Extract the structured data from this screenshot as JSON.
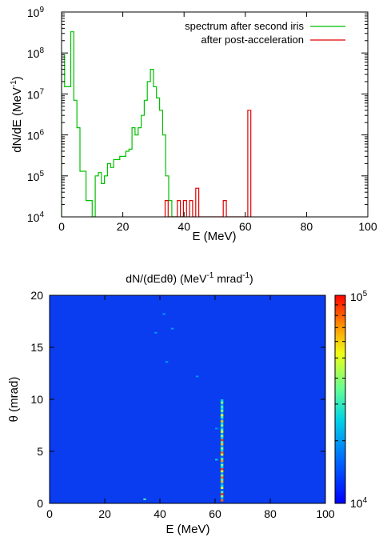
{
  "chart_data": [
    {
      "type": "histogram",
      "title": "",
      "xlabel": "E (MeV)",
      "ylabel": "dN/dE (MeV",
      "ylabel_sup": "-1",
      "ylabel_close": ")",
      "xlim": [
        0,
        100
      ],
      "ylim": [
        10000,
        1000000000
      ],
      "yscale": "log",
      "xticks": [
        0,
        20,
        40,
        60,
        80,
        100
      ],
      "xtick_labels": [
        "0",
        "20",
        "40",
        "60",
        "80",
        "100"
      ],
      "yticks": [
        10000,
        100000,
        1000000,
        10000000,
        100000000,
        1000000000
      ],
      "ytick_bases": [
        "10",
        "10",
        "10",
        "10",
        "10",
        "10"
      ],
      "ytick_exps": [
        "4",
        "5",
        "6",
        "7",
        "8",
        "9"
      ],
      "grid": false,
      "legend_position": "top-right",
      "series": [
        {
          "name": "spectrum after second iris",
          "color": "#00c000",
          "edges": [
            0,
            1,
            2,
            3,
            4,
            5,
            6,
            7,
            8,
            9,
            10,
            11,
            12,
            13,
            14,
            15,
            16,
            17,
            18,
            19,
            20,
            21,
            22,
            23,
            24,
            25,
            26,
            27,
            28,
            29,
            30,
            31,
            32,
            33,
            34,
            35,
            36,
            37,
            38,
            39,
            40
          ],
          "values": [
            90000000,
            15000000,
            15000000,
            330000000,
            7000000,
            1500000,
            130000,
            130000,
            25000,
            25000,
            10000,
            100000,
            120000,
            65000,
            100000,
            200000,
            160000,
            250000,
            250000,
            300000,
            300000,
            400000,
            450000,
            1500000,
            1000000,
            1500000,
            3000000,
            7000000,
            20000000,
            40000000,
            15000000,
            8000000,
            4000000,
            1000000,
            100000,
            25000,
            10000,
            10000,
            10000,
            10000
          ]
        },
        {
          "name": "after post-acceleration",
          "color": "#e00000",
          "edges": [
            33.8,
            34.8,
            37.8,
            38.8,
            39.8,
            40.8,
            41.8,
            42.8,
            43.8,
            44.8,
            52.8,
            53.8,
            60.8,
            61.8
          ],
          "values": [
            25000,
            10000,
            25000,
            10000,
            25000,
            10000,
            25000,
            10000,
            50000,
            10000,
            25000,
            10000,
            4000000
          ]
        }
      ]
    },
    {
      "type": "heatmap",
      "title": "dN/(dEdθ) (MeV",
      "title_sup1": "-1",
      "title_mid": " mrad",
      "title_sup2": "-1",
      "title_close": ")",
      "xlabel": "E (MeV)",
      "ylabel": "θ (mrad)",
      "xlim": [
        0,
        100
      ],
      "ylim": [
        0,
        20
      ],
      "xticks": [
        0,
        20,
        40,
        60,
        80,
        100
      ],
      "xtick_labels": [
        "0",
        "20",
        "40",
        "60",
        "80",
        "100"
      ],
      "yticks": [
        0,
        5,
        10,
        15,
        20
      ],
      "ytick_labels": [
        "0",
        "5",
        "10",
        "15",
        "20"
      ],
      "colorbar": {
        "scale": "log",
        "min": 10000,
        "max": 100000,
        "min_base": "10",
        "min_exp": "4",
        "max_base": "10",
        "max_exp": "5"
      },
      "background_level": 10000,
      "points": [
        {
          "E": 34.5,
          "theta": 0.4,
          "level": 0.5
        },
        {
          "E": 38.5,
          "theta": 16.4,
          "level": 0.3
        },
        {
          "E": 41.5,
          "theta": 18.2,
          "level": 0.3
        },
        {
          "E": 42.5,
          "theta": 13.6,
          "level": 0.3
        },
        {
          "E": 44.5,
          "theta": 16.8,
          "level": 0.3
        },
        {
          "E": 53.5,
          "theta": 12.2,
          "level": 0.3
        },
        {
          "E": 60.5,
          "theta": 4.2,
          "level": 0.4
        },
        {
          "E": 60.5,
          "theta": 7.2,
          "level": 0.3
        }
      ],
      "column": {
        "E": 62.5,
        "theta_min": 0.2,
        "theta_max": 10.0,
        "levels": [
          0.9,
          0.3,
          0.6,
          0.95,
          0.5,
          0.2,
          0.7,
          0.4,
          0.3,
          0.8,
          0.5,
          0.9,
          0.6,
          0.3,
          0.7,
          0.95,
          0.4,
          0.6,
          0.3,
          0.85,
          0.5,
          0.2,
          0.7,
          0.9,
          0.4,
          0.6,
          0.3,
          0.8,
          0.5,
          0.95,
          0.4,
          0.6,
          0.3,
          0.7,
          0.5,
          0.3,
          0.6,
          0.4,
          0.8,
          0.3,
          0.5,
          0.7,
          0.3,
          0.6,
          0.4,
          0.5,
          0.3,
          0.6,
          0.4
        ]
      }
    }
  ]
}
